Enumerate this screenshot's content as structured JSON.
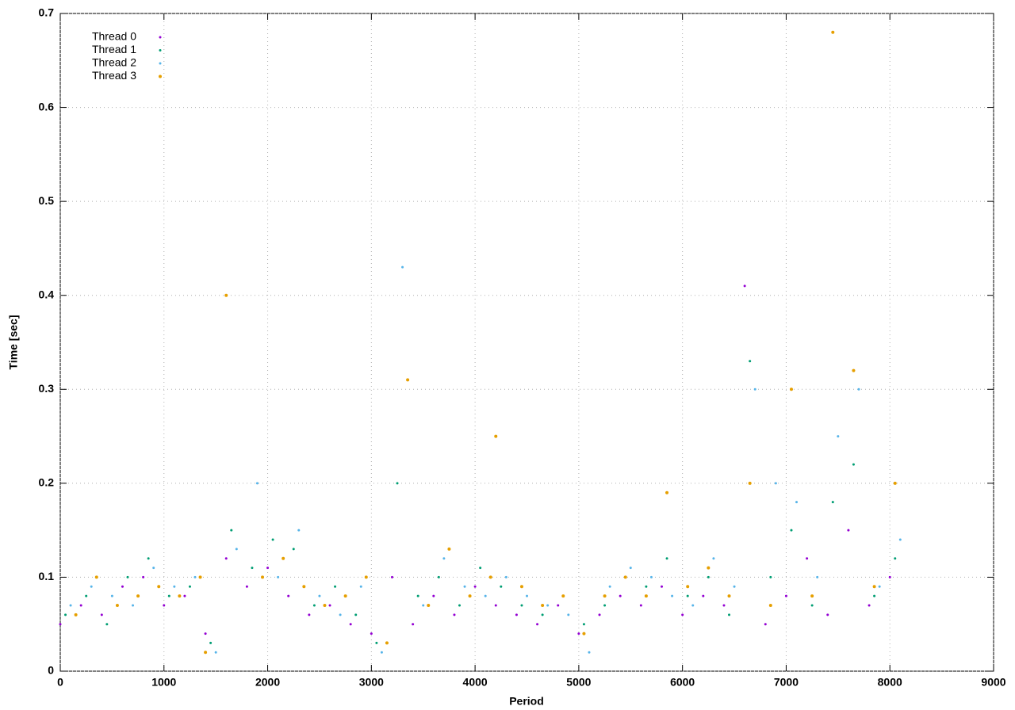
{
  "chart_data": {
    "type": "scatter",
    "xlabel": "Period",
    "ylabel": "Time [sec]",
    "xlim": [
      0,
      9000
    ],
    "xticks": [
      0,
      1000,
      2000,
      3000,
      4000,
      5000,
      6000,
      7000,
      8000,
      9000
    ],
    "ylim": [
      0,
      0.7
    ],
    "yticks": [
      0,
      0.1,
      0.2,
      0.3,
      0.4,
      0.5,
      0.6,
      0.7
    ],
    "grid": true,
    "legend": "top-left",
    "series": [
      {
        "name": "Thread 0",
        "color": "#9400d3",
        "x": [
          0,
          200,
          400,
          600,
          800,
          1000,
          1200,
          1400,
          1600,
          1800,
          2000,
          2200,
          2400,
          2600,
          2800,
          3000,
          3200,
          3400,
          3600,
          3800,
          4000,
          4200,
          4400,
          4600,
          4800,
          5000,
          5200,
          5400,
          5600,
          5800,
          6000,
          6200,
          6400,
          6600,
          6800,
          7000,
          7200,
          7400,
          7600,
          7800,
          8000
        ],
        "values": [
          0.05,
          0.07,
          0.06,
          0.09,
          0.1,
          0.07,
          0.08,
          0.04,
          0.12,
          0.09,
          0.11,
          0.08,
          0.06,
          0.07,
          0.05,
          0.04,
          0.1,
          0.05,
          0.08,
          0.06,
          0.09,
          0.07,
          0.06,
          0.05,
          0.07,
          0.04,
          0.06,
          0.08,
          0.07,
          0.09,
          0.06,
          0.08,
          0.07,
          0.41,
          0.05,
          0.08,
          0.12,
          0.06,
          0.15,
          0.07,
          0.1
        ]
      },
      {
        "name": "Thread 1",
        "color": "#009e73",
        "x": [
          50,
          250,
          450,
          650,
          850,
          1050,
          1250,
          1450,
          1650,
          1850,
          2050,
          2250,
          2450,
          2650,
          2850,
          3050,
          3250,
          3450,
          3650,
          3850,
          4050,
          4250,
          4450,
          4650,
          4850,
          5050,
          5250,
          5450,
          5650,
          5850,
          6050,
          6250,
          6450,
          6650,
          6850,
          7050,
          7250,
          7450,
          7650,
          7850,
          8050
        ],
        "values": [
          0.06,
          0.08,
          0.05,
          0.1,
          0.12,
          0.08,
          0.09,
          0.03,
          0.15,
          0.11,
          0.14,
          0.13,
          0.07,
          0.09,
          0.06,
          0.03,
          0.2,
          0.08,
          0.1,
          0.07,
          0.11,
          0.09,
          0.07,
          0.06,
          0.08,
          0.05,
          0.07,
          0.1,
          0.09,
          0.12,
          0.08,
          0.1,
          0.06,
          0.33,
          0.1,
          0.15,
          0.07,
          0.18,
          0.22,
          0.08,
          0.12
        ]
      },
      {
        "name": "Thread 2",
        "color": "#56b4e9",
        "x": [
          100,
          300,
          500,
          700,
          900,
          1100,
          1300,
          1500,
          1700,
          1900,
          2100,
          2300,
          2500,
          2700,
          2900,
          3100,
          3300,
          3500,
          3700,
          3900,
          4100,
          4300,
          4500,
          4700,
          4900,
          5100,
          5300,
          5500,
          5700,
          5900,
          6100,
          6300,
          6500,
          6700,
          6900,
          7100,
          7300,
          7500,
          7700,
          7900,
          8100
        ],
        "values": [
          0.07,
          0.09,
          0.08,
          0.07,
          0.11,
          0.09,
          0.1,
          0.02,
          0.13,
          0.2,
          0.1,
          0.15,
          0.08,
          0.06,
          0.09,
          0.02,
          0.43,
          0.07,
          0.12,
          0.09,
          0.08,
          0.1,
          0.08,
          0.07,
          0.06,
          0.02,
          0.09,
          0.11,
          0.1,
          0.08,
          0.07,
          0.12,
          0.09,
          0.3,
          0.2,
          0.18,
          0.1,
          0.25,
          0.3,
          0.09,
          0.14
        ]
      },
      {
        "name": "Thread 3",
        "color": "#e69f00",
        "x": [
          150,
          350,
          550,
          750,
          950,
          1150,
          1350,
          1400,
          1600,
          1950,
          2150,
          2350,
          2550,
          2750,
          2950,
          3150,
          3350,
          3550,
          3750,
          3950,
          4150,
          4200,
          4450,
          4650,
          4850,
          5050,
          5250,
          5450,
          5650,
          5850,
          6050,
          6250,
          6450,
          6650,
          6850,
          7050,
          7250,
          7450,
          7650,
          7850,
          8050
        ],
        "values": [
          0.06,
          0.1,
          0.07,
          0.08,
          0.09,
          0.08,
          0.1,
          0.02,
          0.4,
          0.1,
          0.12,
          0.09,
          0.07,
          0.08,
          0.1,
          0.03,
          0.31,
          0.07,
          0.13,
          0.08,
          0.1,
          0.25,
          0.09,
          0.07,
          0.08,
          0.04,
          0.08,
          0.1,
          0.08,
          0.19,
          0.09,
          0.11,
          0.08,
          0.2,
          0.07,
          0.3,
          0.08,
          0.68,
          0.32,
          0.09,
          0.2
        ]
      }
    ]
  }
}
